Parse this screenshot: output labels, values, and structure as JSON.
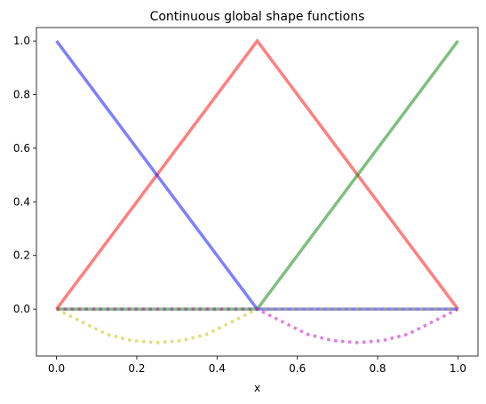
{
  "chart_data": {
    "type": "line",
    "title": "Continuous global shape functions",
    "xlabel": "x",
    "ylabel": "",
    "xlim": [
      -0.05,
      1.05
    ],
    "ylim": [
      -0.175,
      1.05
    ],
    "x_ticks": [
      0.0,
      0.2,
      0.4,
      0.6,
      0.8,
      1.0
    ],
    "x_tick_labels": [
      "0.0",
      "0.2",
      "0.4",
      "0.6",
      "0.8",
      "1.0"
    ],
    "y_ticks": [
      0.0,
      0.2,
      0.4,
      0.6,
      0.8,
      1.0
    ],
    "y_tick_labels": [
      "0.0",
      "0.2",
      "0.4",
      "0.6",
      "0.8",
      "1.0"
    ],
    "grid": false,
    "legend": "none",
    "series": [
      {
        "color": "#ff0000",
        "style": "solid",
        "opacity": 0.5,
        "x": [
          0.0,
          0.5,
          1.0
        ],
        "y": [
          0.0,
          1.0,
          0.0
        ]
      },
      {
        "color": "#008000",
        "style": "solid",
        "opacity": 0.5,
        "x": [
          0.0,
          0.5,
          1.0
        ],
        "y": [
          0.0,
          0.0,
          1.0
        ]
      },
      {
        "color": "#0000ff",
        "style": "solid",
        "opacity": 0.5,
        "x": [
          0.0,
          0.5,
          1.0
        ],
        "y": [
          1.0,
          0.0,
          0.0
        ]
      },
      {
        "color": "#bfbf00",
        "style": "dotted",
        "opacity": 0.5,
        "x": [
          0.0,
          0.0625,
          0.125,
          0.1875,
          0.25,
          0.3125,
          0.375,
          0.4375,
          0.5,
          0.75,
          1.0
        ],
        "y": [
          0.0,
          -0.0469,
          -0.0938,
          -0.1172,
          -0.125,
          -0.1172,
          -0.0938,
          -0.0469,
          0.0,
          0.0,
          0.0
        ]
      },
      {
        "color": "#bf00bf",
        "style": "dotted",
        "opacity": 0.5,
        "x": [
          0.0,
          0.25,
          0.5,
          0.5625,
          0.625,
          0.6875,
          0.75,
          0.8125,
          0.875,
          0.9375,
          1.0
        ],
        "y": [
          0.0,
          0.0,
          0.0,
          -0.0469,
          -0.0938,
          -0.1172,
          -0.125,
          -0.1172,
          -0.0938,
          -0.0469,
          0.0
        ]
      }
    ]
  }
}
